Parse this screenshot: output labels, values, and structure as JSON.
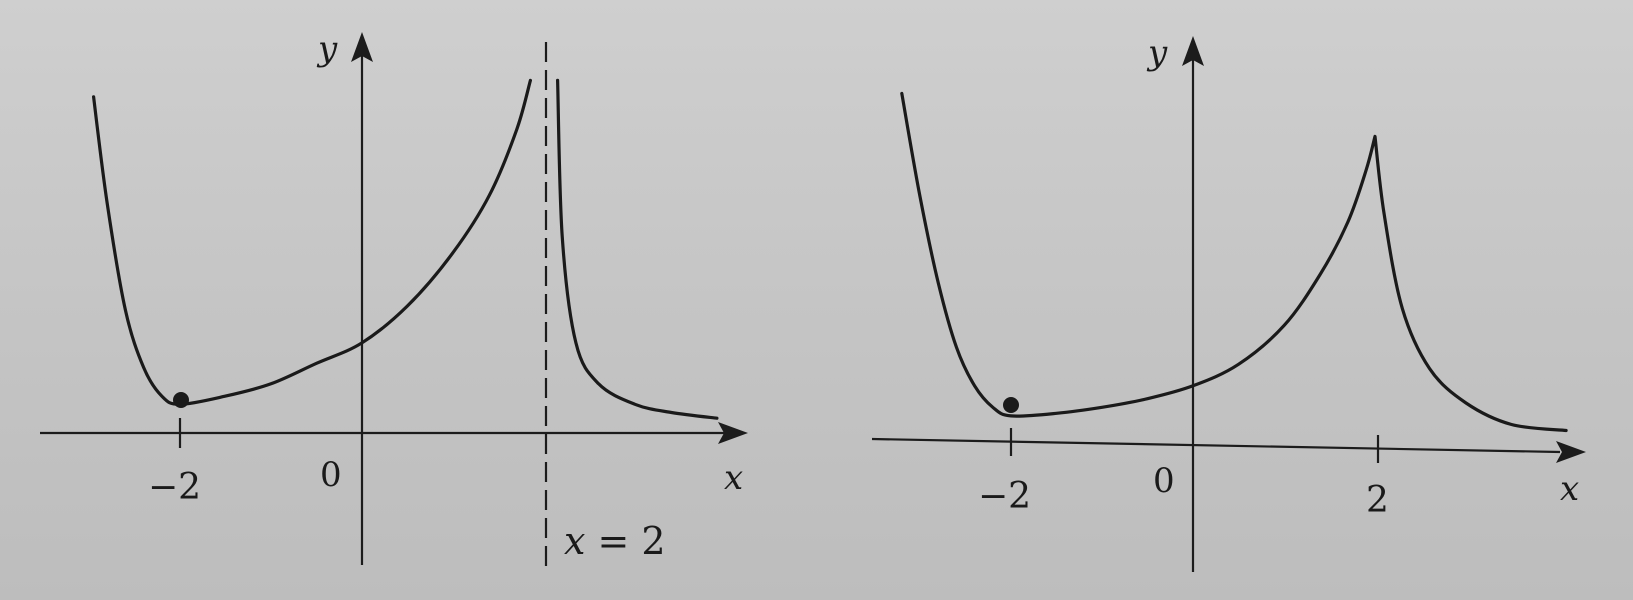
{
  "chart_data": [
    {
      "type": "line",
      "xlabel": "x",
      "ylabel": "y",
      "origin_label": "0",
      "tick_labels": [
        "−2"
      ],
      "ticks_x": [
        -2
      ],
      "asymptote": {
        "x": 2,
        "label": "x = 2"
      },
      "marked_points": [
        {
          "x": -2,
          "y": 0.35,
          "label": "−2"
        }
      ],
      "xlim": [
        -3.6,
        4.2
      ],
      "ylim": [
        -1.4,
        4.3
      ],
      "series": [
        {
          "x": [
            -2.95,
            -2.8,
            -2.6,
            -2.4,
            -2.2,
            -2.0,
            -1.5,
            -1.0,
            -0.5,
            0.0,
            0.5,
            1.0,
            1.4,
            1.7,
            1.85
          ],
          "y": [
            4.1,
            2.8,
            1.5,
            0.8,
            0.45,
            0.35,
            0.45,
            0.6,
            0.85,
            1.1,
            1.55,
            2.2,
            2.9,
            3.7,
            4.3
          ]
        },
        {
          "x": [
            2.15,
            2.2,
            2.35,
            2.6,
            3.0,
            3.4,
            3.9
          ],
          "y": [
            4.3,
            2.4,
            1.1,
            0.6,
            0.35,
            0.25,
            0.18
          ]
        }
      ]
    },
    {
      "type": "line",
      "xlabel": "x",
      "ylabel": "y",
      "origin_label": "0",
      "tick_labels": [
        "−2",
        "2"
      ],
      "ticks_x": [
        -2,
        2
      ],
      "marked_points": [
        {
          "x": -2,
          "y": 0.35
        }
      ],
      "xlim": [
        -3.6,
        4.2
      ],
      "ylim": [
        -1.4,
        4.3
      ],
      "series": [
        {
          "x": [
            -3.2,
            -3.0,
            -2.8,
            -2.6,
            -2.4,
            -2.2,
            -2.0,
            -1.5,
            -1.0,
            -0.5,
            0.0,
            0.5,
            1.0,
            1.4,
            1.7,
            1.9,
            2.0,
            2.1,
            2.3,
            2.6,
            3.0,
            3.5,
            4.1
          ],
          "y": [
            4.1,
            2.9,
            1.9,
            1.15,
            0.7,
            0.45,
            0.35,
            0.38,
            0.45,
            0.55,
            0.7,
            0.95,
            1.4,
            2.0,
            2.6,
            3.2,
            3.6,
            2.7,
            1.6,
            0.9,
            0.5,
            0.25,
            0.18
          ]
        }
      ]
    }
  ]
}
